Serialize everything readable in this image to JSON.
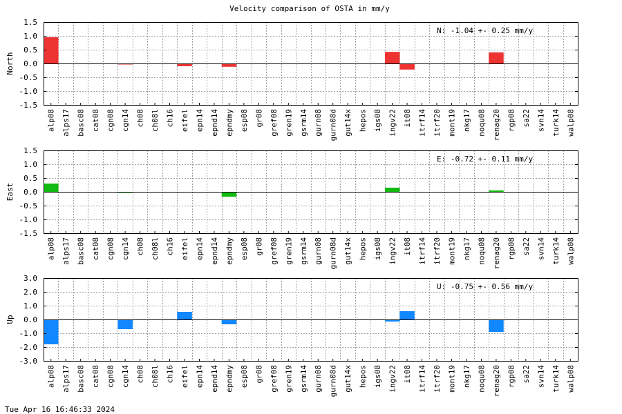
{
  "title": "Velocity comparison of OSTA in mm/y",
  "timestamp": "Tue Apr 16 16:46:33 2024",
  "chart_data": [
    {
      "type": "bar",
      "ylabel": "North",
      "ylim": [
        -1.5,
        1.5
      ],
      "yticks": [
        "1.5",
        "1.0",
        "0.5",
        "0.0",
        "-0.5",
        "-1.0",
        "-1.5"
      ],
      "ytick_values": [
        1.5,
        1.0,
        0.5,
        0.0,
        -0.5,
        -1.0,
        -1.5
      ],
      "grid": true,
      "color": "#ee3333",
      "annotation": "N:  -1.04 +-  0.25 mm/y",
      "categories": [
        "alp08",
        "alps17",
        "basc08",
        "cat08",
        "cgn08",
        "cgn14",
        "ch08",
        "ch08l",
        "ch16",
        "eifel",
        "epn14",
        "epnd14",
        "epndmy",
        "esp08",
        "gr08",
        "gref08",
        "gren19",
        "gsrm14",
        "gurn08",
        "gurn08d",
        "gut14x",
        "hepos",
        "igs08",
        "ingv22",
        "it08",
        "itrf14",
        "itrf20",
        "mont19",
        "nkg17",
        "noqu08",
        "renag20",
        "rgp08",
        "sa22",
        "svn14",
        "turk14",
        "walp08"
      ],
      "values": [
        0.95,
        0,
        0,
        0,
        0,
        -0.03,
        0,
        0,
        0,
        -0.1,
        0,
        0,
        -0.12,
        0,
        0,
        0,
        0,
        0,
        0,
        0,
        0,
        0,
        0,
        0.42,
        -0.22,
        0,
        0,
        0,
        0,
        0,
        0.4,
        0,
        0,
        0,
        0,
        0
      ]
    },
    {
      "type": "bar",
      "ylabel": "East",
      "ylim": [
        -1.5,
        1.5
      ],
      "yticks": [
        "1.5",
        "1.0",
        "0.5",
        "0.0",
        "-0.5",
        "-1.0",
        "-1.5"
      ],
      "ytick_values": [
        1.5,
        1.0,
        0.5,
        0.0,
        -0.5,
        -1.0,
        -1.5
      ],
      "grid": true,
      "color": "#11bb11",
      "annotation": "E:  -0.72 +-  0.11 mm/y",
      "categories": [
        "alp08",
        "alps17",
        "basc08",
        "cat08",
        "cgn08",
        "cgn14",
        "ch08",
        "ch08l",
        "ch16",
        "eifel",
        "epn14",
        "epnd14",
        "epndmy",
        "esp08",
        "gr08",
        "gref08",
        "gren19",
        "gsrm14",
        "gurn08",
        "gurn08d",
        "gut14x",
        "hepos",
        "igs08",
        "ingv22",
        "it08",
        "itrf14",
        "itrf20",
        "mont19",
        "nkg17",
        "noqu08",
        "renag20",
        "rgp08",
        "sa22",
        "svn14",
        "turk14",
        "walp08"
      ],
      "values": [
        0.3,
        0,
        0,
        0,
        0,
        -0.03,
        0,
        0,
        0,
        0,
        0,
        0,
        -0.18,
        0,
        0,
        0,
        0,
        0,
        0,
        0,
        0,
        0,
        0,
        0.15,
        0,
        0,
        0,
        0,
        0,
        0,
        0.05,
        0,
        0,
        0,
        0,
        0
      ]
    },
    {
      "type": "bar",
      "ylabel": "Up",
      "ylim": [
        -3.0,
        3.0
      ],
      "yticks": [
        "3.0",
        "2.0",
        "1.0",
        "0.0",
        "-1.0",
        "-2.0",
        "-3.0"
      ],
      "ytick_values": [
        3.0,
        2.0,
        1.0,
        0.0,
        -1.0,
        -2.0,
        -3.0
      ],
      "grid": true,
      "color": "#1188ff",
      "annotation": "U:  -0.75 +-  0.56 mm/y",
      "categories": [
        "alp08",
        "alps17",
        "basc08",
        "cat08",
        "cgn08",
        "cgn14",
        "ch08",
        "ch08l",
        "ch16",
        "eifel",
        "epn14",
        "epnd14",
        "epndmy",
        "esp08",
        "gr08",
        "gref08",
        "gren19",
        "gsrm14",
        "gurn08",
        "gurn08d",
        "gut14x",
        "hepos",
        "igs08",
        "ingv22",
        "it08",
        "itrf14",
        "itrf20",
        "mont19",
        "nkg17",
        "noqu08",
        "renag20",
        "rgp08",
        "sa22",
        "svn14",
        "turk14",
        "walp08"
      ],
      "values": [
        -1.8,
        0,
        0,
        0,
        0,
        -0.7,
        0,
        0,
        0,
        0.55,
        0,
        0,
        -0.35,
        0,
        0,
        0,
        0,
        0,
        0,
        0,
        0,
        0,
        0,
        -0.15,
        0.6,
        0,
        0,
        0,
        0,
        0,
        -0.9,
        0,
        0,
        0,
        0,
        0
      ]
    }
  ]
}
